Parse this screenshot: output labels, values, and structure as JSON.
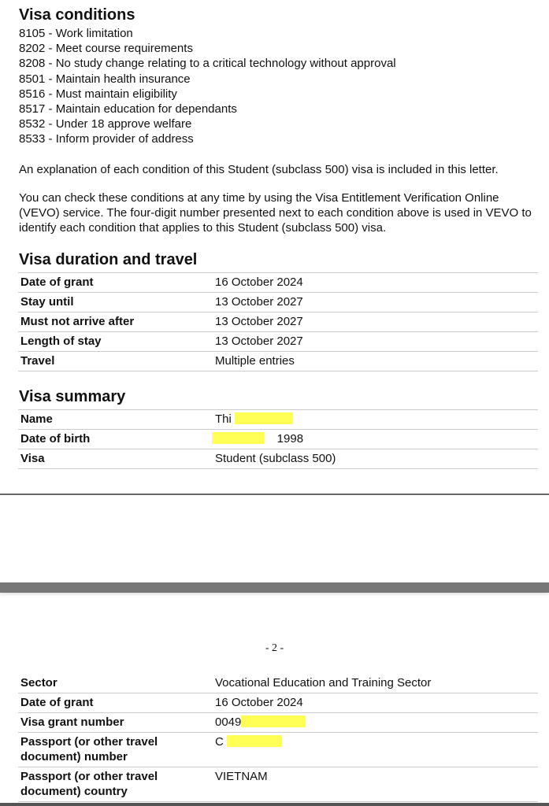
{
  "conditions": {
    "title": "Visa conditions",
    "items": [
      "8105 - Work limitation",
      "8202 - Meet course requirements",
      "8208 - No study change relating to a critical technology without approval",
      "8501 - Maintain health insurance",
      "8516 - Must maintain eligibility",
      "8517 - Maintain education for dependants",
      "8532 - Under 18 approve welfare",
      "8533 - Inform provider of address"
    ],
    "explanation": "An explanation of each condition of this Student (subclass 500) visa is included in this letter.",
    "vevo": "You can check these conditions at any time by using the Visa Entitlement Verification Online (VEVO) service. The four-digit number presented next to each condition above is used in VEVO to identify each condition that applies to this Student (subclass 500) visa."
  },
  "duration": {
    "title": "Visa duration and travel",
    "rows": [
      [
        "Date of grant",
        "16 October 2024"
      ],
      [
        "Stay until",
        "13 October 2027"
      ],
      [
        "Must not arrive after",
        "13 October 2027"
      ],
      [
        "Length of stay",
        "13 October 2027"
      ],
      [
        "Travel",
        "Multiple entries"
      ]
    ]
  },
  "summary": {
    "title": "Visa summary",
    "rows": [
      [
        "Name",
        "Thi"
      ],
      [
        "Date of birth",
        "1998"
      ],
      [
        "Visa",
        "Student (subclass 500)"
      ]
    ]
  },
  "page2": {
    "page_number": "- 2 -",
    "rows": [
      [
        "Sector",
        "Vocational Education and Training Sector"
      ],
      [
        "Date of grant",
        "16 October 2024"
      ],
      [
        "Visa grant number",
        "0049"
      ],
      [
        "Passport (or other travel document) number",
        "C"
      ],
      [
        "Passport (or other travel document) country",
        "VIETNAM"
      ]
    ]
  },
  "redaction_color": "#ffff55"
}
